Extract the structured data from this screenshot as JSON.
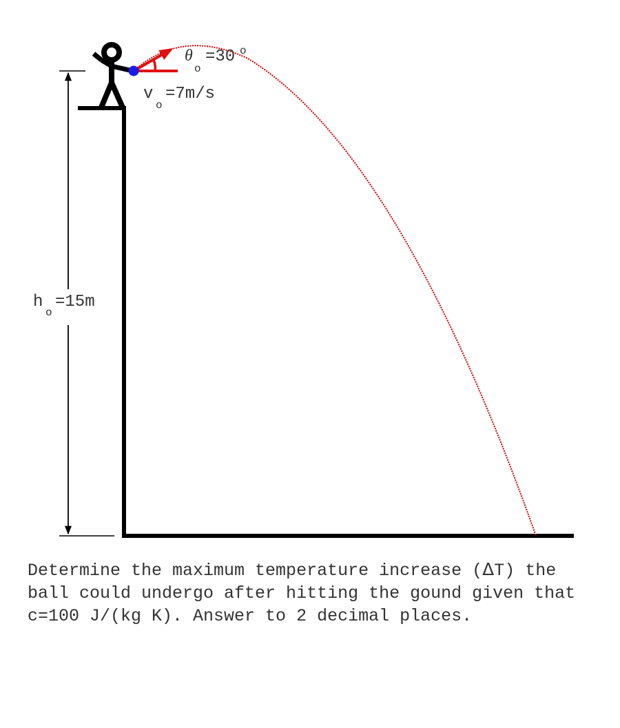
{
  "diagram": {
    "height_label": {
      "symbol": "h",
      "subscript": "o",
      "value": "=15m"
    },
    "velocity_label": {
      "symbol": "v",
      "subscript": "o",
      "value": "=7m/s"
    },
    "angle_label": {
      "symbol": "θ",
      "subscript": "o",
      "value": "=30",
      "degree": "o"
    },
    "colors": {
      "trajectory": "#cc0000",
      "vector": "#e01010",
      "ball": "#1a1aee",
      "structure": "#000000"
    }
  },
  "question": {
    "text_before": "Determine the maximum temperature increase (",
    "delta": "Δ",
    "text_after": "T) the ball could undergo after hitting the gound given that c=100 J/(kg K). Answer to 2 decimal places."
  }
}
